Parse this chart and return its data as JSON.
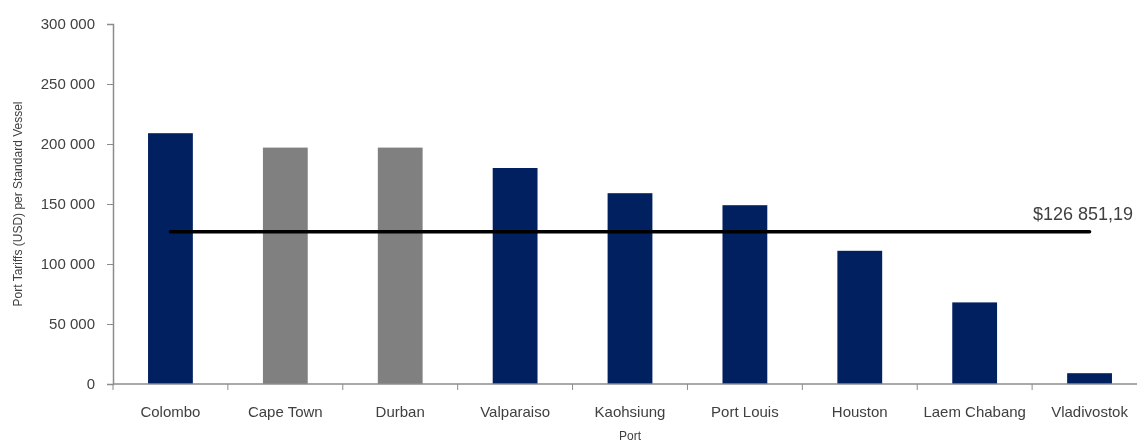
{
  "chart_data": {
    "type": "bar",
    "xlabel": "Port",
    "ylabel": "Port Tariffs (USD) per Standard Vessel",
    "categories": [
      "Colombo",
      "Cape Town",
      "Durban",
      "Valparaiso",
      "Kaohsiung",
      "Port Louis",
      "Houston",
      "Laem Chabang",
      "Vladivostok"
    ],
    "values": [
      209000,
      197000,
      197000,
      180000,
      159000,
      149000,
      111000,
      68000,
      9000
    ],
    "colors": [
      "#002060",
      "#808080",
      "#808080",
      "#002060",
      "#002060",
      "#002060",
      "#002060",
      "#002060",
      "#002060"
    ],
    "ylim": [
      0,
      300000
    ],
    "yticks": [
      {
        "value": 0,
        "label": "0"
      },
      {
        "value": 50000,
        "label": "50 000"
      },
      {
        "value": 100000,
        "label": "100 000"
      },
      {
        "value": 150000,
        "label": "150 000"
      },
      {
        "value": 200000,
        "label": "200 000"
      },
      {
        "value": 250000,
        "label": "250 000"
      },
      {
        "value": 300000,
        "label": "300 000"
      }
    ],
    "ref_lines": [
      {
        "axis": "y",
        "value": 126851.19,
        "label": "$126 851,19",
        "color": "#000000"
      }
    ]
  }
}
